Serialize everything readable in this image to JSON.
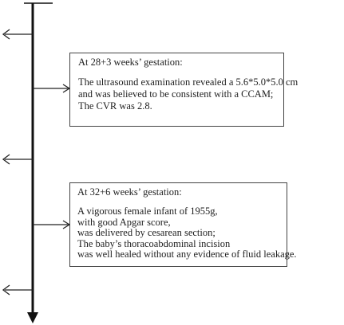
{
  "timeline": {
    "side_arrow_count": 4,
    "pointer_arrow_count": 2
  },
  "events": [
    {
      "heading": "At 28+3 weeks’ gestation:",
      "lines": [
        "The ultrasound examination revealed a 5.6*5.0*5.0 cm",
        "and was believed to be consistent with a CCAM;",
        "The CVR was 2.8."
      ]
    },
    {
      "heading": "At 32+6 weeks’ gestation:",
      "lines": [
        "A vigorous female infant of 1955g,",
        "with good Apgar score,",
        "was delivered by cesarean section;",
        "The baby’s thoracoabdominal incision",
        "was well healed without any evidence of fluid leakage."
      ]
    }
  ]
}
